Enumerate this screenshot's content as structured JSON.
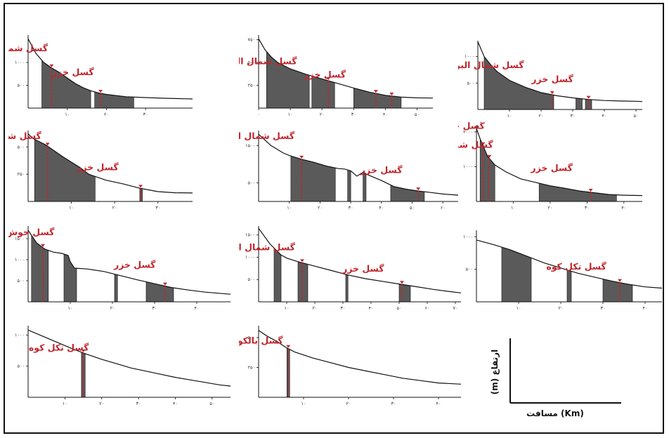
{
  "colors": {
    "fault": "#c0262c",
    "shade": "#5a5a5a",
    "line": "#111111"
  },
  "legend": {
    "xlabel": "مسافت (Km)",
    "ylabel": "ارتفاع (m)"
  },
  "chart_data": [
    {
      "type": "area",
      "yticks": [
        500,
        1000
      ],
      "ytick_labels": [
        "۵۰۰",
        "۱۰۰۰"
      ],
      "xticks": [
        10,
        20,
        30
      ],
      "xtick_labels": [
        "۱۰",
        "۲۰",
        "۳۰"
      ],
      "xlim": [
        0,
        42
      ],
      "ylim": [
        0,
        1600
      ],
      "x": [
        0,
        2,
        4,
        6,
        8,
        10,
        12,
        14,
        16,
        18,
        20,
        25,
        30,
        35,
        40,
        42
      ],
      "y": [
        1520,
        1200,
        1000,
        880,
        780,
        660,
        540,
        450,
        380,
        330,
        300,
        250,
        230,
        215,
        205,
        200
      ],
      "shaded": [
        [
          3.5,
          16
        ],
        [
          17,
          27
        ]
      ],
      "faults": [
        {
          "label": "گسل شمال البرز",
          "x": 6
        },
        {
          "label": "گسل خزر",
          "x": 18.5
        }
      ]
    },
    {
      "type": "area",
      "yticks": [
        250,
        500,
        750
      ],
      "ytick_labels": [
        "۲۵۰",
        "۵۰۰",
        "۷۵۰"
      ],
      "xticks": [
        0,
        10,
        20,
        30,
        40,
        50
      ],
      "xtick_labels": [
        "۰",
        "۱۰",
        "۲۰",
        "۳۰",
        "۴۰",
        "۵۰"
      ],
      "xlim": [
        0,
        55
      ],
      "ylim": [
        0,
        800
      ],
      "x": [
        0,
        2,
        4,
        6,
        10,
        15,
        20,
        25,
        30,
        35,
        40,
        45,
        50,
        55
      ],
      "y": [
        760,
        640,
        560,
        500,
        430,
        370,
        320,
        270,
        220,
        175,
        140,
        120,
        112,
        110
      ],
      "shaded": [
        [
          2.5,
          16
        ],
        [
          16.8,
          24
        ],
        [
          30,
          45
        ]
      ],
      "faults": [
        {
          "label": "گسل شمال البرز",
          "x": 22
        },
        {
          "label": "گسل خزر",
          "x": 37
        },
        {
          "label": "",
          "x": 42
        }
      ]
    },
    {
      "type": "area",
      "yticks": [
        500,
        1000
      ],
      "ytick_labels": [
        "۵۰۰",
        "۱۰۰۰"
      ],
      "xticks": [
        10,
        20,
        30,
        40,
        50
      ],
      "xtick_labels": [
        "۱۰",
        "۲۰",
        "۳۰",
        "۴۰",
        "۵۰"
      ],
      "xlim": [
        0,
        52
      ],
      "ylim": [
        0,
        1300
      ],
      "x": [
        0,
        2,
        4,
        6,
        10,
        15,
        20,
        25,
        30,
        35,
        40,
        45,
        50,
        52
      ],
      "y": [
        1280,
        1000,
        850,
        720,
        550,
        420,
        320,
        260,
        220,
        190,
        170,
        160,
        155,
        150
      ],
      "shaded": [
        [
          2,
          24
        ],
        [
          31,
          33
        ],
        [
          34,
          36
        ]
      ],
      "faults": [
        {
          "label": "گسل شمال البرز",
          "x": 23.5
        },
        {
          "label": "گسل خزر",
          "x": 35
        }
      ]
    },
    {
      "type": "area",
      "yticks": [
        250,
        500
      ],
      "ytick_labels": [
        "۲۵۰",
        "۵۰۰"
      ],
      "xticks": [
        10,
        20,
        30
      ],
      "xtick_labels": [
        "۱۰",
        "۲۰",
        "۳۰"
      ],
      "xlim": [
        0,
        38
      ],
      "ylim": [
        0,
        650
      ],
      "x": [
        0,
        1,
        2,
        4,
        8,
        12,
        14,
        18,
        22,
        26,
        30,
        34,
        38
      ],
      "y": [
        620,
        580,
        560,
        520,
        410,
        310,
        250,
        195,
        160,
        120,
        90,
        80,
        78
      ],
      "shaded": [
        [
          1.5,
          15.5
        ],
        [
          25.8,
          26.4
        ]
      ],
      "faults": [
        {
          "label": "گسل شمال البرز",
          "x": 4.5
        },
        {
          "label": "گسل خزر",
          "x": 26
        }
      ]
    },
    {
      "type": "area",
      "yticks": [
        500,
        1500
      ],
      "ytick_labels": [
        "۵۰۰",
        "۱۵۰۰"
      ],
      "xticks": [
        10,
        20,
        30,
        40,
        50,
        60
      ],
      "xtick_labels": [
        "۱۰",
        "۲۰",
        "۳۰",
        "۴۰",
        "۵۰",
        "۶۰"
      ],
      "xlim": [
        0,
        65
      ],
      "ylim": [
        0,
        1900
      ],
      "x": [
        0,
        4,
        8,
        10,
        14,
        18,
        22,
        26,
        28,
        30,
        32,
        34,
        36,
        40,
        44,
        48,
        52,
        56,
        60,
        65
      ],
      "y": [
        1800,
        1500,
        1300,
        1230,
        1130,
        1050,
        950,
        880,
        870,
        820,
        680,
        780,
        700,
        560,
        400,
        330,
        280,
        240,
        200,
        170
      ],
      "shaded": [
        [
          10.5,
          25
        ],
        [
          29,
          30
        ],
        [
          34,
          35
        ],
        [
          43,
          54
        ]
      ],
      "faults": [
        {
          "label": "گسل شمال البرز",
          "x": 14
        },
        {
          "label": "گسل خزر",
          "x": 52
        }
      ]
    },
    {
      "type": "area",
      "yticks": [
        1000,
        2000
      ],
      "ytick_labels": [
        "۱۰۰۰",
        "۲۰۰۰"
      ],
      "xticks": [
        10,
        20,
        30,
        40
      ],
      "xtick_labels": [
        "۱۰",
        "۲۰",
        "۳۰",
        "۴۰"
      ],
      "xlim": [
        0,
        45
      ],
      "ylim": [
        0,
        2200
      ],
      "x": [
        0,
        1,
        2,
        3,
        5,
        8,
        12,
        16,
        20,
        24,
        28,
        32,
        36,
        40,
        45
      ],
      "y": [
        2100,
        1800,
        1550,
        1300,
        1050,
        850,
        650,
        550,
        450,
        380,
        300,
        250,
        200,
        180,
        170
      ],
      "shaded": [
        [
          1,
          5
        ],
        [
          17,
          38
        ]
      ],
      "faults": [
        {
          "label": "گسل خوش ییلاق",
          "x": 1.8
        },
        {
          "label": "گسل شمال البرز",
          "x": 3.5
        },
        {
          "label": "گسل خزر",
          "x": 31
        }
      ]
    },
    {
      "type": "area",
      "yticks": [
        500,
        1000,
        1500
      ],
      "ytick_labels": [
        "۵۰۰",
        "۱۰۰۰",
        "۱۵۰۰"
      ],
      "xticks": [
        10,
        20,
        30,
        40
      ],
      "xtick_labels": [
        "۱۰",
        "۲۰",
        "۳۰",
        "۴۰"
      ],
      "xlim": [
        0,
        48
      ],
      "ylim": [
        0,
        1800
      ],
      "x": [
        0,
        2,
        4,
        6,
        8,
        9.5,
        10,
        11,
        14,
        18,
        22,
        26,
        30,
        34,
        38,
        42,
        48
      ],
      "y": [
        1700,
        1400,
        1250,
        1180,
        1150,
        1100,
        950,
        800,
        780,
        720,
        620,
        520,
        430,
        340,
        280,
        230,
        180
      ],
      "shaded": [
        [
          0.8,
          4.8
        ],
        [
          8.5,
          11.5
        ],
        [
          20.5,
          21.2
        ],
        [
          28,
          34.5
        ]
      ],
      "faults": [
        {
          "label": "گسل خوش ییلاق",
          "x": 3.5
        },
        {
          "label": "گسل خزر",
          "x": 32.5
        }
      ]
    },
    {
      "type": "area",
      "yticks": [
        500,
        1000,
        1500
      ],
      "ytick_labels": [
        "۵۰۰",
        "۱۰۰۰",
        "۱۵۰۰"
      ],
      "xticks": [
        10,
        20,
        30,
        40,
        50,
        60,
        70
      ],
      "xtick_labels": [
        "۱۰",
        "۲۰",
        "۳۰",
        "۴۰",
        "۵۰",
        "۶۰",
        "۷۰"
      ],
      "xlim": [
        0,
        72
      ],
      "ylim": [
        0,
        1700
      ],
      "x": [
        0,
        4,
        8,
        10,
        14,
        20,
        26,
        32,
        38,
        44,
        50,
        56,
        62,
        68,
        72
      ],
      "y": [
        1650,
        1300,
        1050,
        980,
        900,
        800,
        700,
        600,
        520,
        460,
        400,
        340,
        280,
        230,
        200
      ],
      "shaded": [
        [
          5.5,
          8
        ],
        [
          14,
          17.5
        ],
        [
          31,
          31.8
        ],
        [
          50,
          54
        ]
      ],
      "faults": [
        {
          "label": "گسل شمال البرز",
          "x": 15.5
        },
        {
          "label": "گسل خزر",
          "x": 51
        }
      ]
    },
    {
      "type": "area",
      "yticks": [
        500,
        1000
      ],
      "ytick_labels": [
        "۵۰۰",
        "۱۰۰۰"
      ],
      "xticks": [
        10,
        20,
        30,
        40
      ],
      "xtick_labels": [
        "۱۰",
        "۲۰",
        "۳۰",
        "۴۰"
      ],
      "xlim": [
        0,
        44
      ],
      "ylim": [
        0,
        1100
      ],
      "x": [
        0,
        4,
        8,
        12,
        16,
        20,
        24,
        28,
        32,
        36,
        40,
        44
      ],
      "y": [
        950,
        880,
        800,
        700,
        600,
        520,
        440,
        380,
        320,
        270,
        230,
        210
      ],
      "shaded": [
        [
          6,
          13
        ],
        [
          21.5,
          22.5
        ],
        [
          30,
          37
        ]
      ],
      "faults": [
        {
          "label": "گسل تکل کوه",
          "x": 34
        }
      ]
    },
    {
      "type": "area",
      "yticks": [
        500,
        1000
      ],
      "ytick_labels": [
        "۵۰۰",
        "۱۰۰۰"
      ],
      "xticks": [
        10,
        20,
        30,
        40,
        50
      ],
      "xtick_labels": [
        "۱۰",
        "۲۰",
        "۳۰",
        "۴۰",
        "۵۰"
      ],
      "xlim": [
        0,
        55
      ],
      "ylim": [
        0,
        1150
      ],
      "x": [
        0,
        4,
        8,
        12,
        16,
        20,
        24,
        28,
        32,
        36,
        40,
        44,
        48,
        52,
        55
      ],
      "y": [
        1080,
        980,
        880,
        780,
        690,
        610,
        540,
        470,
        420,
        370,
        320,
        280,
        240,
        200,
        180
      ],
      "shaded": [
        [
          14.5,
          15.5
        ]
      ],
      "faults": [
        {
          "label": "گسل تکل کوه",
          "x": 15
        }
      ]
    },
    {
      "type": "area",
      "yticks": [
        250,
        500
      ],
      "ytick_labels": [
        "۲۵۰",
        "۵۰۰"
      ],
      "xticks": [
        10,
        20,
        30,
        40
      ],
      "xtick_labels": [
        "۱۰",
        "۲۰",
        "۳۰",
        "۴۰"
      ],
      "xlim": [
        0,
        45
      ],
      "ylim": [
        0,
        600
      ],
      "x": [
        0,
        2,
        4,
        6,
        8,
        12,
        16,
        20,
        24,
        28,
        32,
        36,
        40,
        45
      ],
      "y": [
        560,
        510,
        470,
        420,
        380,
        330,
        290,
        250,
        220,
        190,
        160,
        140,
        120,
        110
      ],
      "shaded": [
        [
          6.3,
          6.9
        ]
      ],
      "faults": [
        {
          "label": "گسل بالکور",
          "x": 6.6
        }
      ]
    }
  ]
}
